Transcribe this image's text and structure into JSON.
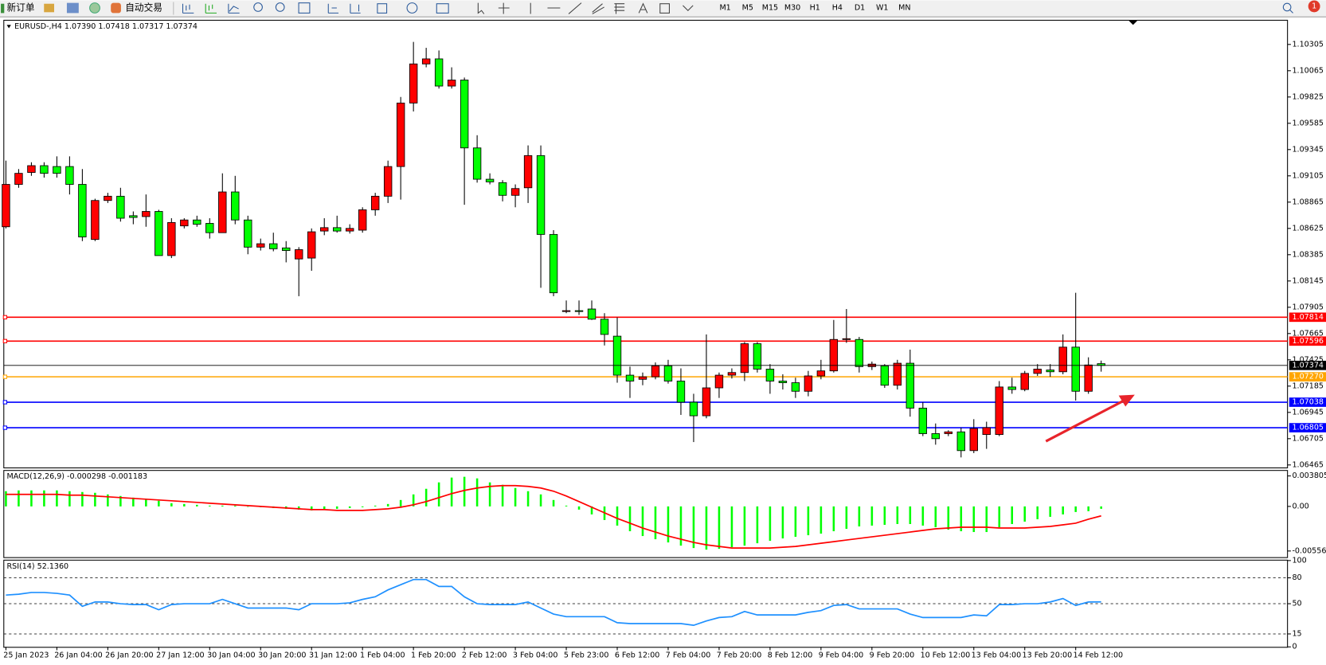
{
  "toolbar": {
    "new_order": "新订单",
    "auto_trading": "自动交易",
    "timeframes": [
      "M1",
      "M5",
      "M15",
      "M30",
      "H1",
      "H4",
      "D1",
      "W1",
      "MN"
    ],
    "badge": "1"
  },
  "chart_data": [
    {
      "type": "candlestick",
      "title": "EURUSD-,H4  1.07390 1.07418 1.07317 1.07374",
      "up_color": "#ff0000",
      "down_color": "#00ff00",
      "categories": [
        "25 Jan 2023",
        null,
        null,
        null,
        "26 Jan 04:00",
        null,
        null,
        null,
        "26 Jan 20:00",
        null,
        null,
        null,
        "27 Jan 12:00",
        null,
        null,
        null,
        "30 Jan 04:00",
        null,
        null,
        null,
        "30 Jan 20:00",
        null,
        null,
        null,
        "31 Jan 12:00",
        null,
        null,
        null,
        "1 Feb 04:00",
        null,
        null,
        null,
        "1 Feb 20:00",
        null,
        null,
        null,
        "2 Feb 12:00",
        null,
        null,
        null,
        "3 Feb 04:00",
        null,
        null,
        null,
        "5 Feb 23:00",
        null,
        null,
        null,
        "6 Feb 12:00",
        null,
        null,
        null,
        "7 Feb 04:00",
        null,
        null,
        null,
        "7 Feb 20:00",
        null,
        null,
        null,
        "8 Feb 12:00",
        null,
        null,
        null,
        "9 Feb 04:00",
        null,
        null,
        null,
        "9 Feb 20:00",
        null,
        null,
        null,
        "10 Feb 12:00",
        null,
        null,
        null,
        "13 Feb 04:00",
        null,
        null,
        null,
        "13 Feb 20:00",
        null,
        null,
        null,
        "14 Feb 12:00",
        null,
        null
      ],
      "ohlc": [
        [
          1.0864,
          1.09244,
          1.08625,
          1.09027
        ],
        [
          1.09027,
          1.09167,
          1.08996,
          1.09128
        ],
        [
          1.09136,
          1.09229,
          1.09105,
          1.09198
        ],
        [
          1.09198,
          1.09229,
          1.09089,
          1.09128
        ],
        [
          1.0919,
          1.09283,
          1.09089,
          1.09128
        ],
        [
          1.0919,
          1.09283,
          1.08935,
          1.09027
        ],
        [
          1.09027,
          1.09167,
          1.08509,
          1.08547
        ],
        [
          1.08524,
          1.08896,
          1.08509,
          1.0888
        ],
        [
          1.0888,
          1.0895,
          1.08857,
          1.08919
        ],
        [
          1.08919,
          1.08996,
          1.08687,
          1.08718
        ],
        [
          1.08741,
          1.0878,
          1.08663,
          1.08725
        ],
        [
          1.08733,
          1.08935,
          1.0864,
          1.0878
        ],
        [
          1.0878,
          1.08795,
          1.08377,
          1.08377
        ],
        [
          1.08377,
          1.08718,
          1.08354,
          1.08679
        ],
        [
          1.08648,
          1.08718,
          1.08625,
          1.08702
        ],
        [
          1.08702,
          1.08741,
          1.0864,
          1.08663
        ],
        [
          1.08671,
          1.08718,
          1.08532,
          1.08586
        ],
        [
          1.08586,
          1.09128,
          1.08586,
          1.08958
        ],
        [
          1.08958,
          1.09105,
          1.08663,
          1.08702
        ],
        [
          1.08702,
          1.08741,
          1.08389,
          1.08454
        ],
        [
          1.08454,
          1.08532,
          1.08423,
          1.08485
        ],
        [
          1.08485,
          1.08586,
          1.08416,
          1.08439
        ],
        [
          1.08447,
          1.08509,
          1.08315,
          1.08423
        ],
        [
          1.08346,
          1.08454,
          1.08006,
          1.08431
        ],
        [
          1.08354,
          1.08625,
          1.08238,
          1.08594
        ],
        [
          1.08601,
          1.08718,
          1.08563,
          1.08632
        ],
        [
          1.08632,
          1.08741,
          1.08586,
          1.08601
        ],
        [
          1.08601,
          1.08663,
          1.08578,
          1.08625
        ],
        [
          1.08609,
          1.08818,
          1.08586,
          1.08795
        ],
        [
          1.08795,
          1.0895,
          1.08741,
          1.08919
        ],
        [
          1.08919,
          1.09244,
          1.08857,
          1.0919
        ],
        [
          1.0919,
          1.09825,
          1.08888,
          1.0977
        ],
        [
          1.0977,
          1.10328,
          1.09693,
          1.10127
        ],
        [
          1.10127,
          1.10274,
          1.10096,
          1.10173
        ],
        [
          1.10173,
          1.1025,
          1.09902,
          1.09925
        ],
        [
          1.09925,
          1.10096,
          1.09902,
          1.0998
        ],
        [
          1.0998,
          1.10003,
          1.08841,
          1.0936
        ],
        [
          1.0936,
          1.09476,
          1.09043,
          1.09074
        ],
        [
          1.09074,
          1.09128,
          1.09027,
          1.0905
        ],
        [
          1.09043,
          1.09066,
          1.08872,
          1.08927
        ],
        [
          1.08927,
          1.09027,
          1.08818,
          1.08989
        ],
        [
          1.08996,
          1.09383,
          1.08857,
          1.0929
        ],
        [
          1.0929,
          1.09383,
          1.08083,
          1.0857
        ],
        [
          1.0857,
          1.08609,
          1.08006,
          1.08037
        ],
        [
          1.07866,
          1.07967,
          1.07851,
          1.07874
        ],
        [
          1.07874,
          1.07967,
          1.07835,
          1.07866
        ],
        [
          1.07889,
          1.07967,
          1.07789,
          1.07796
        ],
        [
          1.07796,
          1.07851,
          1.07556,
          1.07657
        ],
        [
          1.07641,
          1.07812,
          1.07216,
          1.07285
        ],
        [
          1.07285,
          1.07363,
          1.07077,
          1.07231
        ],
        [
          1.07247,
          1.07309,
          1.07193,
          1.0727
        ],
        [
          1.0727,
          1.07401,
          1.07247,
          1.0737
        ],
        [
          1.0737,
          1.07425,
          1.07208,
          1.07231
        ],
        [
          1.07231,
          1.07347,
          1.06922,
          1.07038
        ],
        [
          1.07038,
          1.07115,
          1.06674,
          1.06914
        ],
        [
          1.06914,
          1.07657,
          1.06891,
          1.07169
        ],
        [
          1.07169,
          1.07309,
          1.07077,
          1.07285
        ],
        [
          1.07285,
          1.07347,
          1.07254,
          1.07309
        ],
        [
          1.07309,
          1.07587,
          1.07231,
          1.07572
        ],
        [
          1.07572,
          1.07587,
          1.07309,
          1.0734
        ],
        [
          1.0734,
          1.07386,
          1.07115,
          1.07231
        ],
        [
          1.07231,
          1.07293,
          1.07154,
          1.07216
        ],
        [
          1.07216,
          1.07262,
          1.07077,
          1.07138
        ],
        [
          1.07138,
          1.07324,
          1.07092,
          1.07278
        ],
        [
          1.07278,
          1.07425,
          1.07247,
          1.07324
        ],
        [
          1.07324,
          1.07789,
          1.07309,
          1.07611
        ],
        [
          1.07611,
          1.07889,
          1.0758,
          1.07618
        ],
        [
          1.07611,
          1.07634,
          1.07309,
          1.07363
        ],
        [
          1.07363,
          1.07409,
          1.07332,
          1.07386
        ],
        [
          1.0737,
          1.07386,
          1.07169,
          1.07193
        ],
        [
          1.07193,
          1.07425,
          1.07154,
          1.07394
        ],
        [
          1.07394,
          1.07518,
          1.06906,
          1.06984
        ],
        [
          1.06984,
          1.07038,
          1.06728,
          1.06751
        ],
        [
          1.06751,
          1.06844,
          1.0665,
          1.06705
        ],
        [
          1.06751,
          1.06782,
          1.06728,
          1.06767
        ],
        [
          1.06767,
          1.06806,
          1.06534,
          1.06596
        ],
        [
          1.06596,
          1.06883,
          1.06573,
          1.06798
        ],
        [
          1.06743,
          1.0686,
          1.06612,
          1.06806
        ],
        [
          1.06743,
          1.07231,
          1.06728,
          1.07177
        ],
        [
          1.07177,
          1.07262,
          1.07115,
          1.07154
        ],
        [
          1.07154,
          1.07324,
          1.07138,
          1.07301
        ],
        [
          1.07301,
          1.07386,
          1.07278,
          1.0734
        ],
        [
          1.07332,
          1.07386,
          1.0727,
          1.07316
        ],
        [
          1.07316,
          1.07657,
          1.07293,
          1.07541
        ],
        [
          1.07541,
          1.08037,
          1.07053,
          1.07138
        ],
        [
          1.07138,
          1.07448,
          1.07115,
          1.07378
        ],
        [
          1.0739,
          1.07418,
          1.07317,
          1.07374
        ]
      ],
      "ylim": [
        1.06442,
        1.10522
      ],
      "yticks": [
        1.10305,
        1.10065,
        1.09825,
        1.09585,
        1.09345,
        1.09105,
        1.08865,
        1.08625,
        1.08385,
        1.08145,
        1.07905,
        1.07665,
        1.07425,
        1.07185,
        1.06945,
        1.06705,
        1.06465
      ],
      "hlines": [
        {
          "value": 1.07814,
          "color": "#ff0000"
        },
        {
          "value": 1.07596,
          "color": "#ff0000"
        },
        {
          "value": 1.0727,
          "label": "1.07270",
          "color": "#ffa500"
        },
        {
          "value": 1.07038,
          "color": "#0000ff"
        },
        {
          "value": 1.06805,
          "color": "#0000ff"
        }
      ]
    },
    {
      "type": "macd",
      "title": "MACD(12,26,9) -0.000298 -0.001183",
      "series": [
        {
          "style": "bar",
          "color": "#00ff00",
          "values": [
            0.0019,
            0.002,
            0.002,
            0.002,
            0.002,
            0.0019,
            0.0018,
            0.0017,
            0.0015,
            0.0013,
            0.0011,
            0.0009,
            0.0007,
            0.0004,
            0.0003,
            0.0002,
            0.0001,
            0.0001,
            0.0001,
            0.0,
            -0.0001,
            -0.0002,
            -0.0003,
            -0.0004,
            -0.0005,
            -0.0004,
            -0.0003,
            -0.0002,
            -0.0001,
            0.0001,
            0.0003,
            0.0008,
            0.0015,
            0.0022,
            0.003,
            0.0036,
            0.0037,
            0.0035,
            0.003,
            0.0027,
            0.0023,
            0.0019,
            0.0015,
            0.0008,
            0.0001,
            -0.0004,
            -0.001,
            -0.0017,
            -0.0024,
            -0.0031,
            -0.0037,
            -0.0041,
            -0.0045,
            -0.0049,
            -0.0052,
            -0.0054,
            -0.0053,
            -0.0051,
            -0.0049,
            -0.0046,
            -0.0043,
            -0.004,
            -0.0038,
            -0.0036,
            -0.0034,
            -0.0031,
            -0.0028,
            -0.0025,
            -0.0024,
            -0.0023,
            -0.0022,
            -0.0022,
            -0.0024,
            -0.0026,
            -0.0029,
            -0.0031,
            -0.0032,
            -0.0032,
            -0.0026,
            -0.0022,
            -0.0019,
            -0.0016,
            -0.0013,
            -0.001,
            -0.0007,
            -0.0006,
            -0.000298
          ]
        },
        {
          "style": "line",
          "color": "#ff0000",
          "values": [
            0.0015,
            0.0015,
            0.0015,
            0.0015,
            0.0015,
            0.0014,
            0.0014,
            0.0013,
            0.0012,
            0.0011,
            0.001,
            0.0009,
            0.0008,
            0.0007,
            0.0006,
            0.0005,
            0.0004,
            0.0003,
            0.0002,
            0.0001,
            0.0,
            -0.0001,
            -0.0002,
            -0.0003,
            -0.0004,
            -0.0004,
            -0.0005,
            -0.0005,
            -0.0005,
            -0.0004,
            -0.0003,
            -0.0001,
            0.0002,
            0.0006,
            0.0011,
            0.0016,
            0.002,
            0.0023,
            0.0025,
            0.0026,
            0.0026,
            0.0025,
            0.0023,
            0.0019,
            0.0013,
            0.0006,
            -0.0001,
            -0.0008,
            -0.0015,
            -0.0021,
            -0.0027,
            -0.0032,
            -0.0037,
            -0.0041,
            -0.0045,
            -0.0048,
            -0.005,
            -0.0052,
            -0.0052,
            -0.0052,
            -0.0052,
            -0.0051,
            -0.005,
            -0.0048,
            -0.0046,
            -0.0044,
            -0.0042,
            -0.004,
            -0.0038,
            -0.0036,
            -0.0034,
            -0.0032,
            -0.003,
            -0.0028,
            -0.0027,
            -0.0026,
            -0.0026,
            -0.0026,
            -0.0027,
            -0.0027,
            -0.0027,
            -0.0026,
            -0.0025,
            -0.0023,
            -0.0021,
            -0.0016,
            -0.001183
          ]
        }
      ],
      "ylim": [
        -0.00634,
        0.00444
      ],
      "yticks": [
        0.003805,
        {
          "value": 0,
          "label": "0.00"
        },
        -0.005569
      ]
    },
    {
      "type": "line",
      "title": "RSI(14) 52.1360",
      "series": [
        {
          "color": "#1e90ff",
          "values": [
            60,
            61,
            63,
            63,
            62,
            60,
            47,
            52,
            52,
            50,
            49,
            49,
            43,
            49,
            50,
            50,
            50,
            55,
            50,
            45,
            45,
            45,
            45,
            43,
            50,
            50,
            50,
            51,
            55,
            58,
            66,
            72,
            78,
            78,
            70,
            70,
            58,
            50,
            49,
            49,
            49,
            52,
            45,
            38,
            35,
            35,
            35,
            35,
            28,
            27,
            27,
            27,
            27,
            27,
            25,
            30,
            34,
            35,
            41,
            37,
            37,
            37,
            37,
            40,
            42,
            48,
            49,
            44,
            44,
            44,
            44,
            38,
            34,
            34,
            34,
            34,
            37,
            36,
            49,
            49,
            50,
            50,
            52,
            56,
            48,
            52,
            52.136
          ]
        }
      ],
      "ylim": [
        0,
        100
      ],
      "yticks": [
        100,
        80,
        50,
        15,
        0
      ]
    }
  ]
}
